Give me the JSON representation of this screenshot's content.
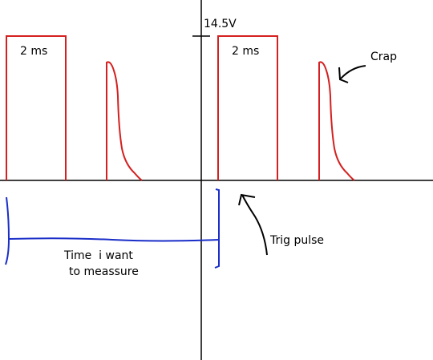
{
  "labels": {
    "voltage": "14.5V",
    "pulse_1": "2 ms",
    "pulse_2": "2 ms",
    "crap": "Crap",
    "trig": "Trig pulse",
    "time_line_1": "Time  i want",
    "time_line_2": "to meassure"
  }
}
